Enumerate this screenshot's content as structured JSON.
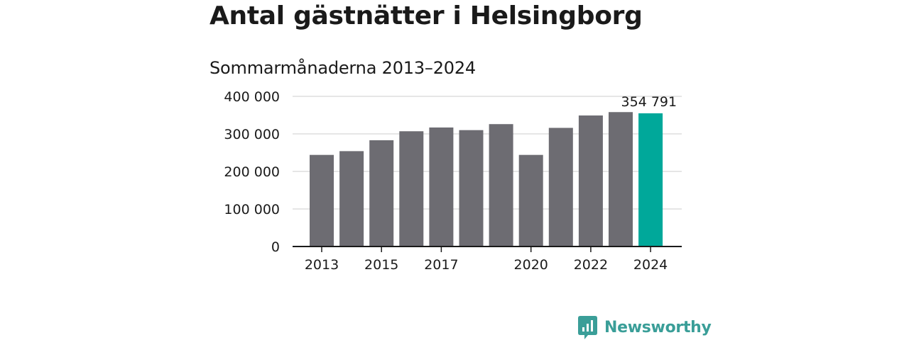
{
  "title": "Antal gästnätter i Helsingborg",
  "subtitle": "Sommarmånaderna 2013–2024",
  "brand": {
    "name": "Newsworthy",
    "icon": "newsworthy-logo-icon",
    "color": "#3a9e98"
  },
  "colors": {
    "bar": "#6d6c72",
    "highlight": "#00a89a",
    "grid": "#dddddd",
    "axis": "#1a1a1a"
  },
  "chart_data": {
    "type": "bar",
    "x": [
      2013,
      2014,
      2015,
      2016,
      2017,
      2018,
      2019,
      2020,
      2021,
      2022,
      2023,
      2024
    ],
    "values": [
      244000,
      254000,
      283000,
      307000,
      317000,
      310000,
      326000,
      244000,
      316000,
      349000,
      358000,
      354791
    ],
    "xtick_labels": [
      "2013",
      "2015",
      "2017",
      "2020",
      "2022",
      "2024"
    ],
    "xtick_values": [
      2013,
      2015,
      2017,
      2020,
      2022,
      2024
    ],
    "ytick_values": [
      0,
      100000,
      200000,
      300000,
      400000
    ],
    "ytick_labels": [
      "0",
      "100 000",
      "200 000",
      "300 000",
      "400 000"
    ],
    "ylim": [
      0,
      400000
    ],
    "highlight": {
      "x": 2024,
      "label": "354 791"
    },
    "grid": true
  }
}
